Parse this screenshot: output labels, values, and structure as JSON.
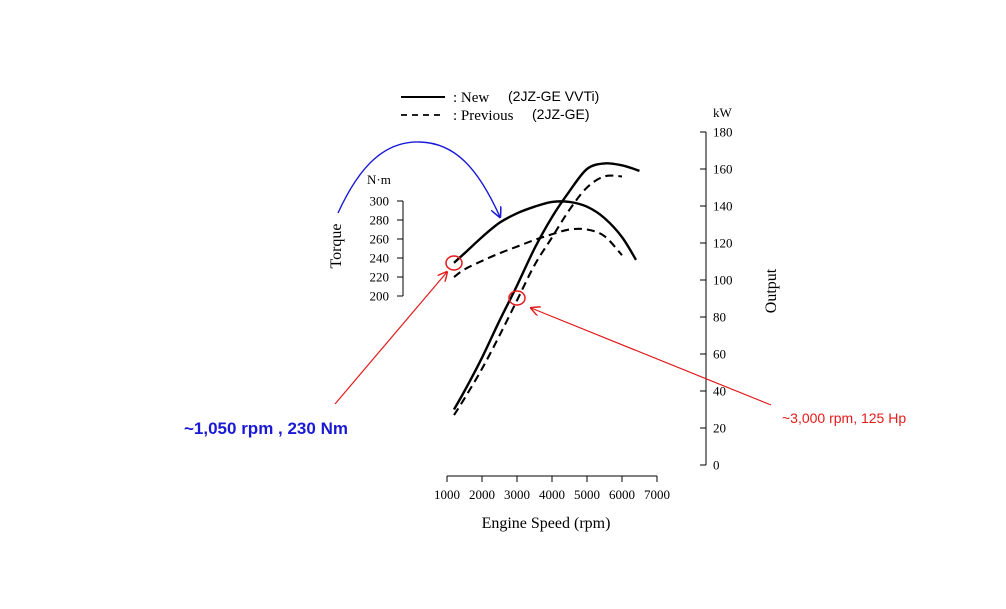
{
  "chart_data": {
    "type": "line",
    "xlabel": "Engine Speed (rpm)",
    "xlim": [
      1000,
      7000
    ],
    "xticks": [
      1000,
      2000,
      3000,
      4000,
      5000,
      6000,
      7000
    ],
    "torque_axis": {
      "label": "Torque",
      "unit": "N·m",
      "ylim": [
        200,
        300
      ],
      "ticks": [
        200,
        220,
        240,
        260,
        280,
        300
      ]
    },
    "output_axis": {
      "label": "Output",
      "unit": "kW",
      "ylim": [
        0,
        180
      ],
      "ticks": [
        0,
        20,
        40,
        60,
        80,
        100,
        120,
        140,
        160,
        180
      ]
    },
    "legend": {
      "new_label": ": New",
      "new_engine": "(2JZ-GE VVTi)",
      "prev_label": ": Previous",
      "prev_engine": "(2JZ-GE)",
      "position": "top"
    },
    "series": [
      {
        "name": "Torque New (2JZ-GE VVTi)",
        "axis": "torque",
        "style": "solid",
        "x": [
          1200,
          1500,
          2000,
          2500,
          3000,
          3500,
          4000,
          4500,
          5000,
          5500,
          6000,
          6400
        ],
        "y": [
          235,
          245,
          262,
          277,
          287,
          294,
          299,
          299,
          294,
          282,
          262,
          238
        ]
      },
      {
        "name": "Torque Previous (2JZ-GE)",
        "axis": "torque",
        "style": "dashed",
        "x": [
          1200,
          1500,
          2000,
          2500,
          3000,
          3500,
          4000,
          4500,
          5000,
          5500,
          6000
        ],
        "y": [
          220,
          228,
          237,
          245,
          252,
          259,
          265,
          270,
          270,
          263,
          243
        ]
      },
      {
        "name": "Output New (2JZ-GE VVTi)",
        "axis": "output",
        "style": "solid",
        "x": [
          1200,
          1500,
          2000,
          2500,
          3000,
          3500,
          4000,
          4500,
          5000,
          5500,
          6000,
          6500
        ],
        "y": [
          30,
          40,
          58,
          78,
          97,
          117,
          134,
          148,
          160,
          163,
          162,
          159
        ]
      },
      {
        "name": "Output Previous (2JZ-GE)",
        "axis": "output",
        "style": "dashed",
        "x": [
          1200,
          1500,
          2000,
          2500,
          3000,
          3500,
          4000,
          4500,
          5000,
          5500,
          6000
        ],
        "y": [
          27,
          36,
          52,
          70,
          89,
          108,
          123,
          138,
          150,
          156,
          156
        ]
      }
    ],
    "annotations": [
      {
        "text": "~1,050 rpm , 230 Nm",
        "color": "#1a1ad6",
        "target_rpm": 1050,
        "target_torque": 230
      },
      {
        "text": "~3,000 rpm, 125 Hp",
        "color": "#e31b1b",
        "target_rpm": 3000,
        "target_output_kw": 93
      }
    ]
  }
}
